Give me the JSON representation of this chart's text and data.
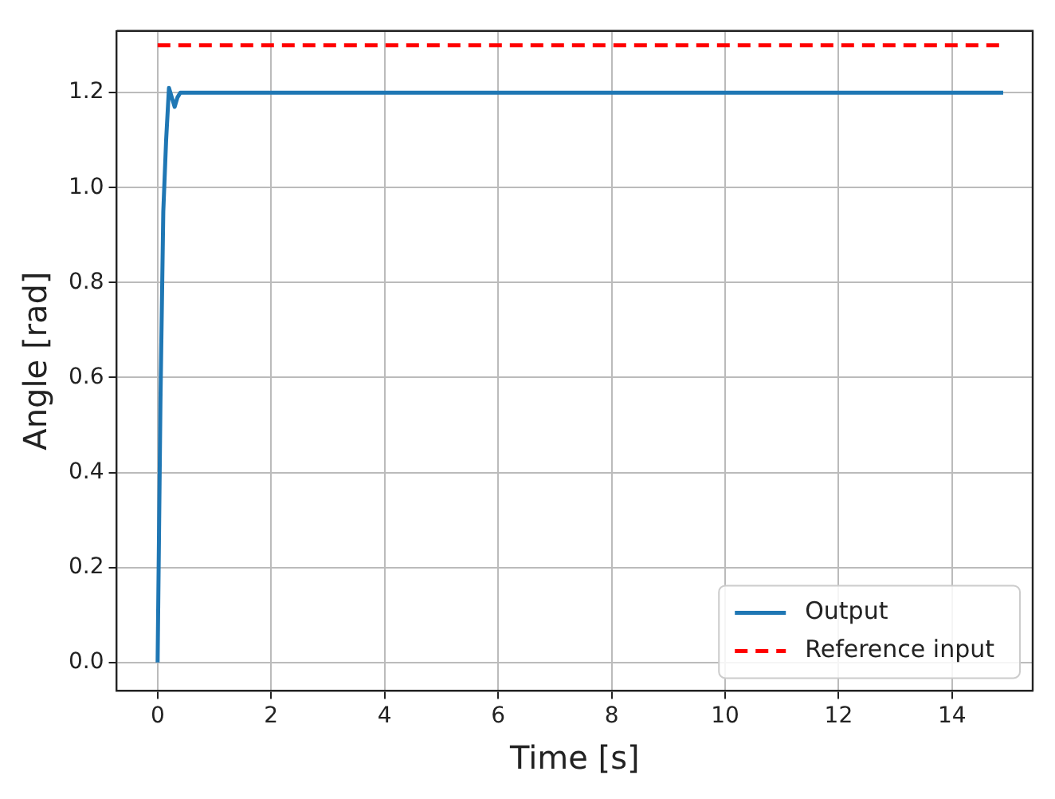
{
  "chart_data": {
    "type": "line",
    "xlabel": "Time [s]",
    "ylabel": "Angle [rad]",
    "xlim": [
      -0.72,
      15.42
    ],
    "xticks": [
      0,
      2,
      4,
      6,
      8,
      10,
      12,
      14
    ],
    "ylim": [
      -0.06,
      1.33
    ],
    "yticks": [
      {
        "value": 0,
        "label": "0.0"
      },
      {
        "value": 0.2,
        "label": "0.2"
      },
      {
        "value": 0.4,
        "label": "0.4"
      },
      {
        "value": 0.6,
        "label": "0.6"
      },
      {
        "value": 0.8,
        "label": "0.8"
      },
      {
        "value": 1,
        "label": "1.0"
      },
      {
        "value": 1.2,
        "label": "1.2"
      }
    ],
    "grid": true,
    "legend": "bottom right",
    "series": [
      {
        "name": "Output",
        "color": "#1f77b4",
        "line_style": "solid",
        "x": [
          0,
          0.05,
          0.1,
          0.15,
          0.2,
          0.25,
          0.3,
          0.35,
          0.4,
          0.5,
          1,
          2,
          4,
          6,
          8,
          10,
          12,
          14,
          14.9
        ],
        "values": [
          0,
          0.55,
          0.95,
          1.1,
          1.21,
          1.19,
          1.17,
          1.19,
          1.2,
          1.2,
          1.2,
          1.2,
          1.2,
          1.2,
          1.2,
          1.2,
          1.2,
          1.2,
          1.2
        ]
      },
      {
        "name": "Reference input",
        "color": "#ff0000",
        "line_style": "dashed",
        "x": [
          0,
          14.9
        ],
        "values": [
          1.3,
          1.3
        ]
      }
    ]
  }
}
